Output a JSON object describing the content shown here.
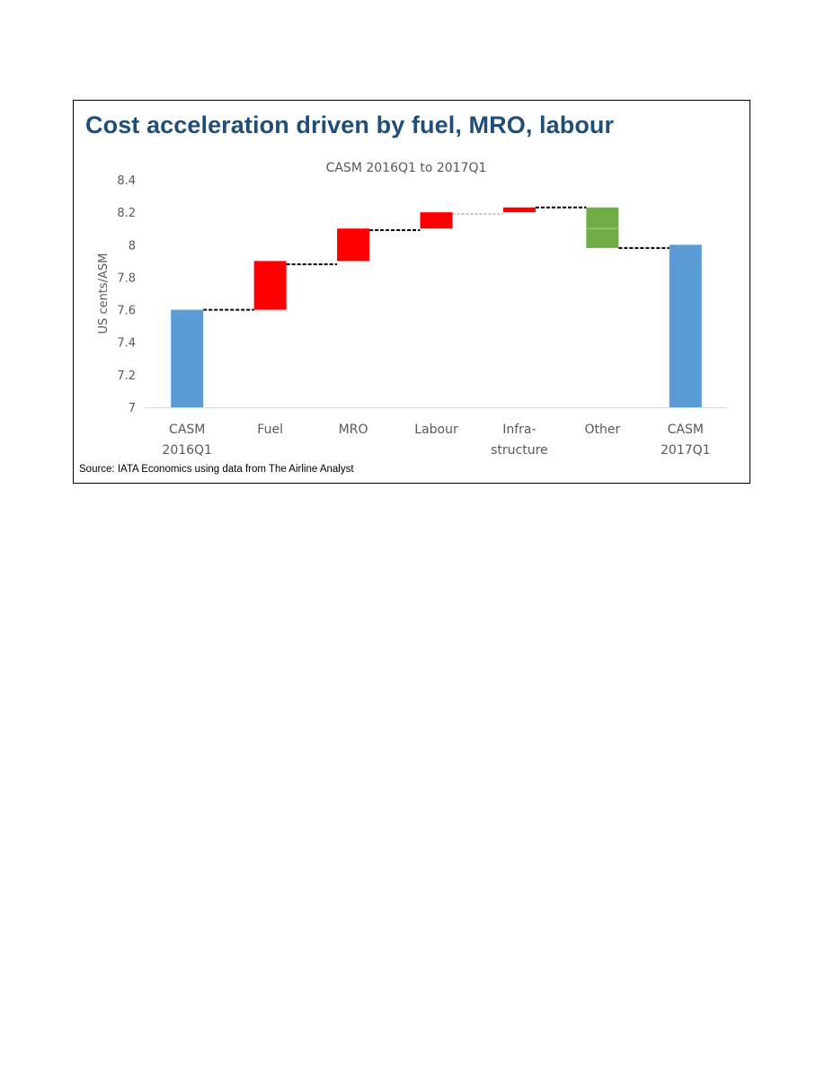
{
  "slide": {
    "title": "Cost acceleration driven by fuel, MRO, labour",
    "source": "Source: IATA Economics using data from The Airline Analyst"
  },
  "colors": {
    "total": "#5b9bd5",
    "increase": "#ff0000",
    "decrease": "#70ad47",
    "title": "#1f4e79",
    "axis_text": "#595959",
    "connector": "#000000"
  },
  "chart_data": {
    "type": "bar",
    "subtype": "waterfall",
    "title": "CASM 2016Q1 to 2017Q1",
    "ylabel": "US cents/ASM",
    "xlabel": "",
    "ylim": [
      7,
      8.4
    ],
    "yticks": [
      "7",
      "7.2",
      "7.4",
      "7.6",
      "7.8",
      "8",
      "8.2",
      "8.4"
    ],
    "grid": false,
    "categories": [
      [
        "CASM",
        "2016Q1"
      ],
      [
        "Fuel"
      ],
      [
        "MRO"
      ],
      [
        "Labour"
      ],
      [
        "Infra-",
        "structure"
      ],
      [
        "Other"
      ],
      [
        "CASM",
        "2017Q1"
      ]
    ],
    "bars": [
      {
        "kind": "total",
        "start": 7.0,
        "end": 7.6
      },
      {
        "kind": "increase",
        "start": 7.6,
        "end": 7.9
      },
      {
        "kind": "increase",
        "start": 7.9,
        "end": 8.1
      },
      {
        "kind": "increase",
        "start": 8.1,
        "end": 8.2
      },
      {
        "kind": "increase",
        "start": 8.2,
        "end": 8.23
      },
      {
        "kind": "decrease",
        "start": 8.23,
        "end": 7.98
      },
      {
        "kind": "total",
        "start": 7.0,
        "end": 8.0
      }
    ],
    "connectors": [
      {
        "from": 0,
        "to": 1,
        "y": 7.6
      },
      {
        "from": 1,
        "to": 2,
        "y": 7.88
      },
      {
        "from": 2,
        "to": 3,
        "y": 8.09
      },
      {
        "from": 3,
        "to": 4,
        "y": 8.19
      },
      {
        "from": 4,
        "to": 5,
        "y": 8.23
      },
      {
        "from": 5,
        "to": 6,
        "y": 7.98
      }
    ]
  }
}
